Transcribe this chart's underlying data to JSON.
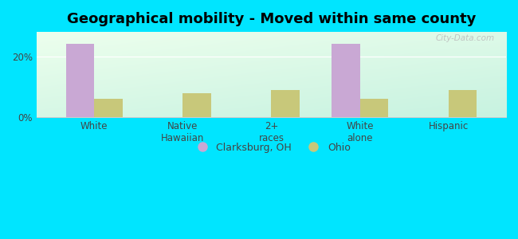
{
  "title": "Geographical mobility - Moved within same county",
  "categories": [
    "White",
    "Native\nHawaiian",
    "2+\nraces",
    "White\nalone",
    "Hispanic"
  ],
  "clarksburg_values": [
    24.0,
    0,
    0,
    24.0,
    0
  ],
  "ohio_values": [
    6.0,
    8.0,
    9.0,
    6.0,
    9.0
  ],
  "clarksburg_color": "#c9a8d4",
  "ohio_color": "#c8c87a",
  "background_outer": "#00e5ff",
  "ylim": [
    0,
    28
  ],
  "yticks": [
    0,
    20
  ],
  "ytick_labels": [
    "0%",
    "20%"
  ],
  "legend_clarksburg": "Clarksburg, OH",
  "legend_ohio": "Ohio",
  "bar_width": 0.32,
  "title_fontsize": 13,
  "watermark": "City-Data.com"
}
